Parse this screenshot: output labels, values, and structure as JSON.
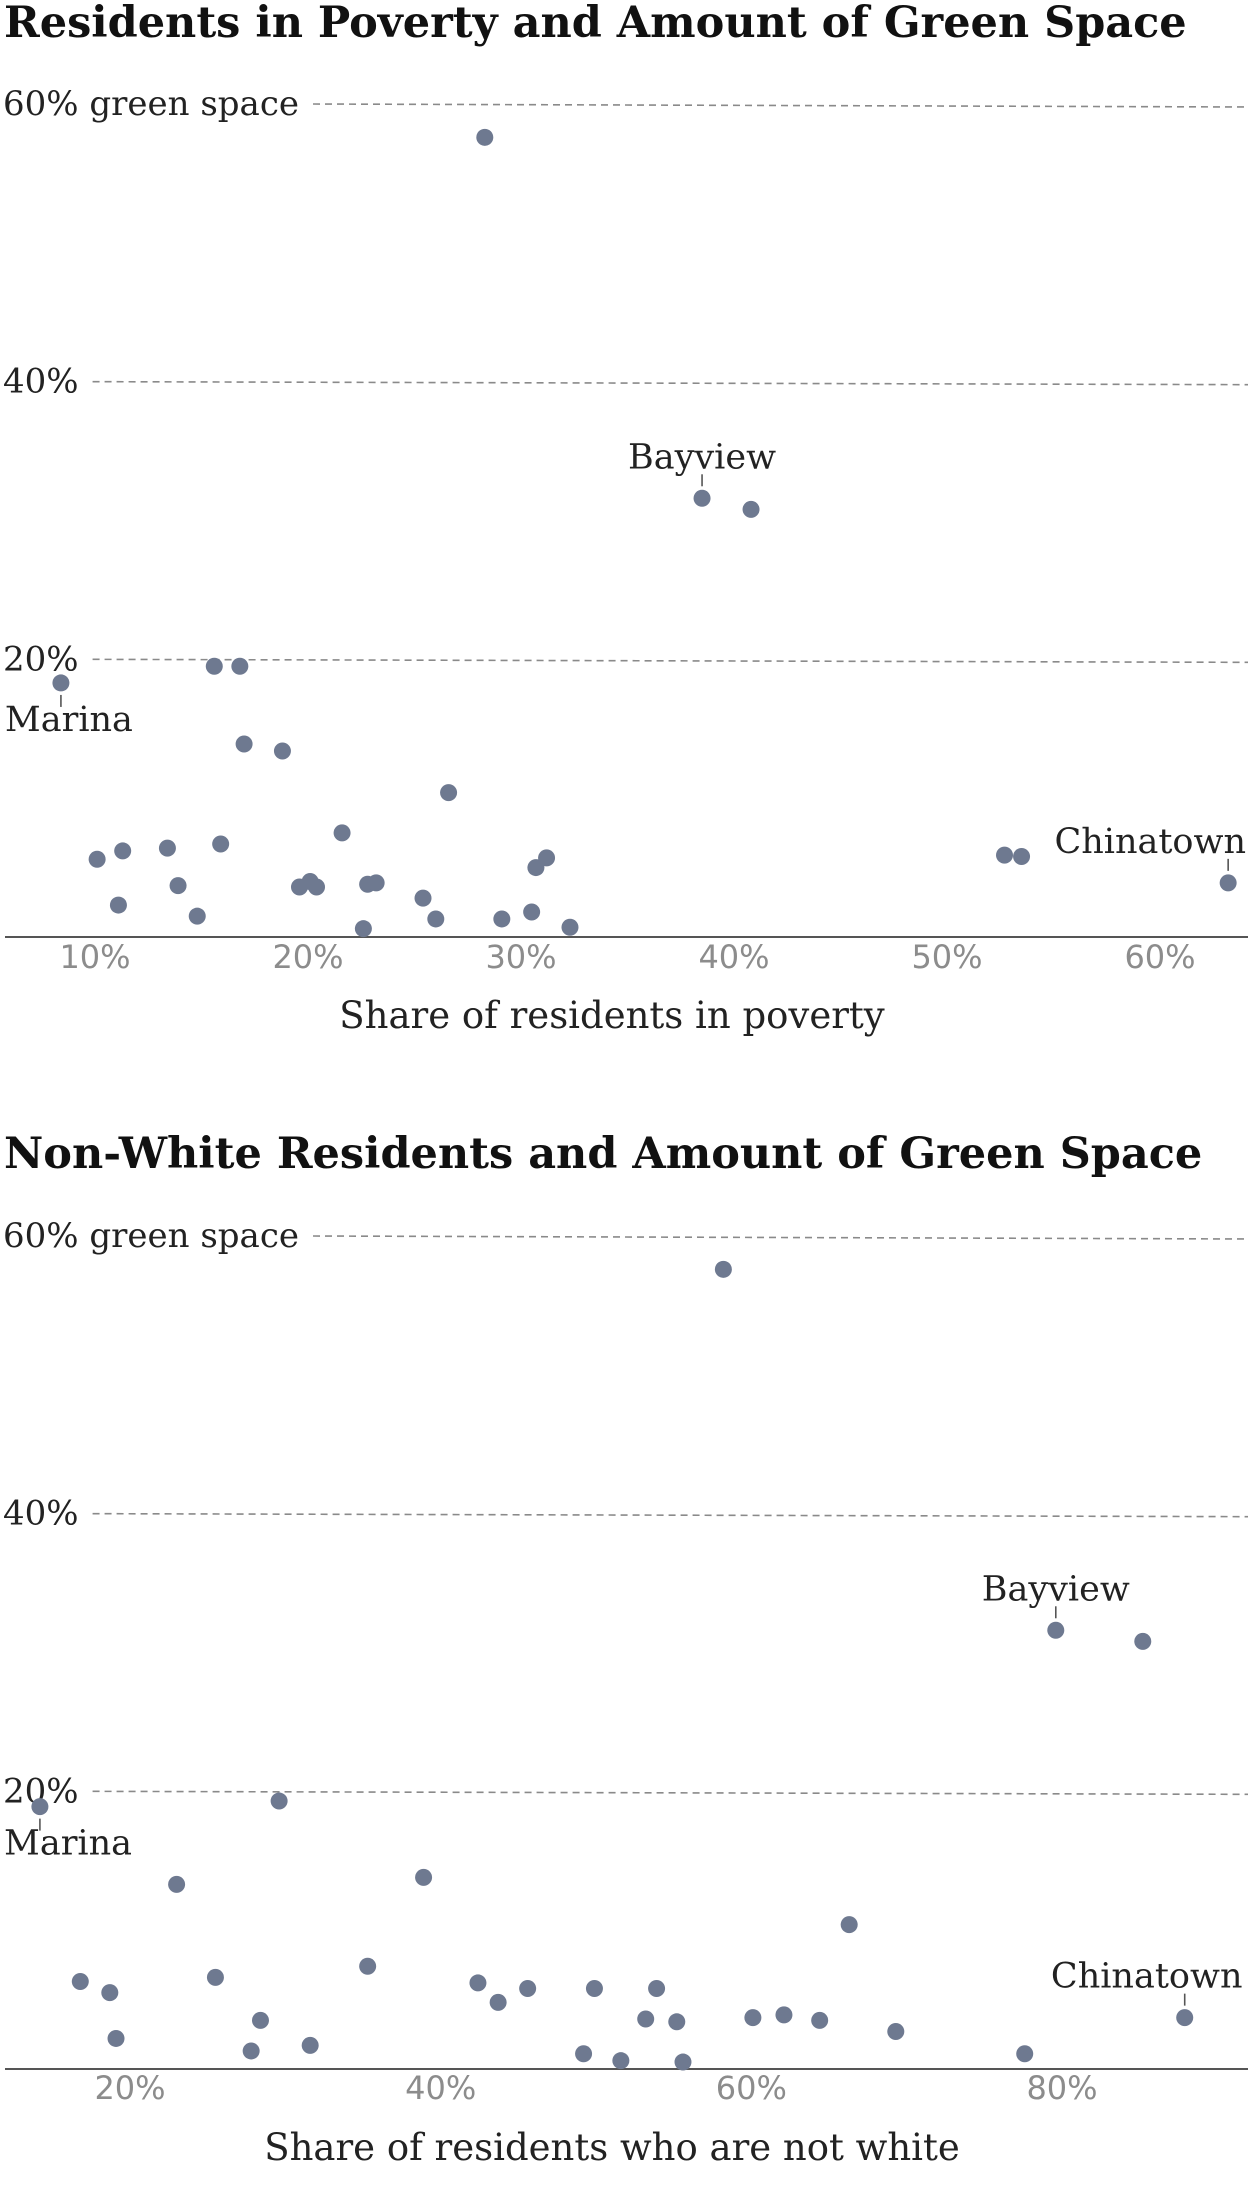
{
  "chart_data": [
    {
      "type": "scatter",
      "title": "Residents in Poverty and Amount of Green Space",
      "xlabel": "Share of residents in poverty",
      "ylabel": "",
      "xlim": [
        5.8,
        64.5
      ],
      "ylim": [
        0,
        60
      ],
      "x_ticks": [
        10,
        20,
        30,
        40,
        50,
        60
      ],
      "x_tick_labels": [
        "10%",
        "20%",
        "30%",
        "40%",
        "50%",
        "60%"
      ],
      "y_ticks": [
        20,
        40,
        60
      ],
      "y_tick_labels": [
        "20%",
        "40%",
        "60% green space"
      ],
      "grid": true,
      "color": "#6e7990",
      "points": [
        {
          "x": 28.3,
          "y": 57.6
        },
        {
          "x": 38.5,
          "y": 31.6,
          "label": "Bayview"
        },
        {
          "x": 40.8,
          "y": 30.8
        },
        {
          "x": 8.4,
          "y": 18.3,
          "label": "Marina"
        },
        {
          "x": 15.6,
          "y": 19.5
        },
        {
          "x": 16.8,
          "y": 19.5
        },
        {
          "x": 17.0,
          "y": 13.9
        },
        {
          "x": 18.8,
          "y": 13.4
        },
        {
          "x": 26.6,
          "y": 10.4
        },
        {
          "x": 10.1,
          "y": 5.6
        },
        {
          "x": 11.3,
          "y": 6.2
        },
        {
          "x": 13.4,
          "y": 6.4
        },
        {
          "x": 15.9,
          "y": 6.7
        },
        {
          "x": 21.6,
          "y": 7.5
        },
        {
          "x": 11.1,
          "y": 2.3
        },
        {
          "x": 13.9,
          "y": 3.7
        },
        {
          "x": 14.8,
          "y": 1.5
        },
        {
          "x": 19.6,
          "y": 3.6
        },
        {
          "x": 20.1,
          "y": 4.0
        },
        {
          "x": 20.4,
          "y": 3.6
        },
        {
          "x": 22.8,
          "y": 3.8
        },
        {
          "x": 23.2,
          "y": 3.9
        },
        {
          "x": 22.6,
          "y": 0.6
        },
        {
          "x": 25.4,
          "y": 2.8
        },
        {
          "x": 26.0,
          "y": 1.3
        },
        {
          "x": 29.1,
          "y": 1.3
        },
        {
          "x": 30.5,
          "y": 1.8
        },
        {
          "x": 30.7,
          "y": 5.0
        },
        {
          "x": 31.2,
          "y": 5.7
        },
        {
          "x": 32.3,
          "y": 0.7
        },
        {
          "x": 52.7,
          "y": 5.9
        },
        {
          "x": 53.5,
          "y": 5.8
        },
        {
          "x": 63.2,
          "y": 3.9,
          "label": "Chinatown"
        }
      ]
    },
    {
      "type": "scatter",
      "title": "Non-White Residents and Amount of Green Space",
      "xlabel": "Share of residents who are not white",
      "ylabel": "",
      "xlim": [
        12.0,
        92.6
      ],
      "ylim": [
        0,
        60
      ],
      "x_ticks": [
        20,
        40,
        60,
        80
      ],
      "x_tick_labels": [
        "20%",
        "40%",
        "60%",
        "80%"
      ],
      "y_ticks": [
        20,
        40,
        60
      ],
      "y_tick_labels": [
        "20%",
        "40%",
        "60% green space"
      ],
      "grid": true,
      "color": "#6e7990",
      "points": [
        {
          "x": 58.2,
          "y": 57.6
        },
        {
          "x": 79.6,
          "y": 31.6,
          "label": "Bayview"
        },
        {
          "x": 85.2,
          "y": 30.8
        },
        {
          "x": 14.2,
          "y": 18.9,
          "label": "Marina"
        },
        {
          "x": 29.6,
          "y": 19.3
        },
        {
          "x": 23.0,
          "y": 13.3
        },
        {
          "x": 38.9,
          "y": 13.8
        },
        {
          "x": 66.3,
          "y": 10.4
        },
        {
          "x": 16.8,
          "y": 6.3
        },
        {
          "x": 18.7,
          "y": 5.5
        },
        {
          "x": 25.5,
          "y": 6.6
        },
        {
          "x": 35.3,
          "y": 7.4
        },
        {
          "x": 42.4,
          "y": 6.2
        },
        {
          "x": 45.6,
          "y": 5.8
        },
        {
          "x": 49.9,
          "y": 5.8
        },
        {
          "x": 53.9,
          "y": 5.8
        },
        {
          "x": 43.7,
          "y": 4.8
        },
        {
          "x": 19.1,
          "y": 2.2
        },
        {
          "x": 27.8,
          "y": 1.3
        },
        {
          "x": 28.4,
          "y": 3.5
        },
        {
          "x": 31.6,
          "y": 1.7
        },
        {
          "x": 49.2,
          "y": 1.1
        },
        {
          "x": 51.6,
          "y": 0.6
        },
        {
          "x": 53.2,
          "y": 3.6
        },
        {
          "x": 55.2,
          "y": 3.4
        },
        {
          "x": 55.6,
          "y": 0.5
        },
        {
          "x": 60.1,
          "y": 3.7
        },
        {
          "x": 62.1,
          "y": 3.9
        },
        {
          "x": 64.4,
          "y": 3.5
        },
        {
          "x": 69.3,
          "y": 2.7
        },
        {
          "x": 77.6,
          "y": 1.1
        },
        {
          "x": 87.9,
          "y": 3.7,
          "label": "Chinatown"
        }
      ]
    }
  ]
}
